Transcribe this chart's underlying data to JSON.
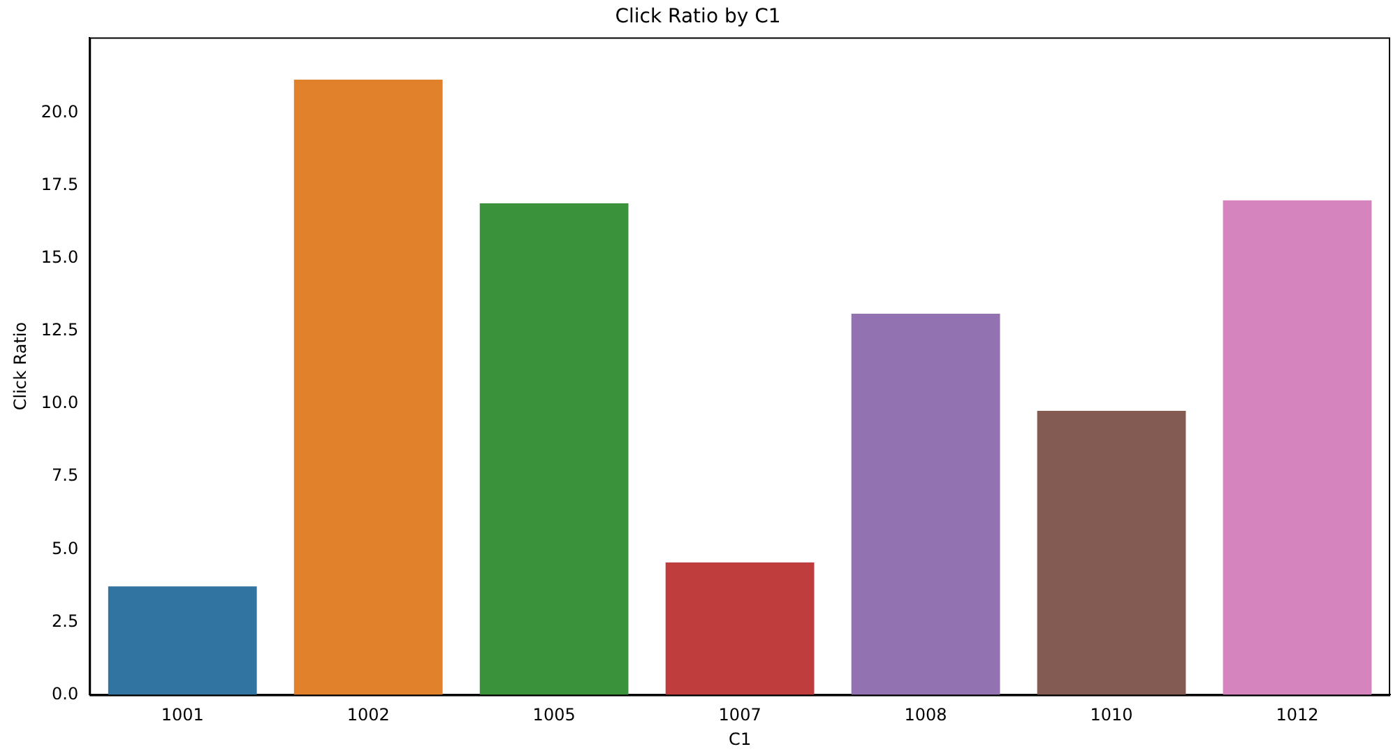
{
  "chart_data": {
    "type": "bar",
    "title": "Click Ratio by C1",
    "xlabel": "C1",
    "ylabel": "Click Ratio",
    "categories": [
      "1001",
      "1002",
      "1005",
      "1007",
      "1008",
      "1010",
      "1012"
    ],
    "values": [
      3.73,
      21.15,
      16.9,
      4.55,
      13.1,
      9.76,
      17.0
    ],
    "colors": [
      "#3274a1",
      "#e1812c",
      "#3a923a",
      "#c03d3e",
      "#9372b2",
      "#845b53",
      "#d684bd"
    ],
    "ylim": [
      0,
      22.6
    ],
    "yticks": [
      {
        "value": 0,
        "label": "0.0"
      },
      {
        "value": 2.5,
        "label": "2.5"
      },
      {
        "value": 5,
        "label": "5.0"
      },
      {
        "value": 7.5,
        "label": "7.5"
      },
      {
        "value": 10,
        "label": "10.0"
      },
      {
        "value": 12.5,
        "label": "12.5"
      },
      {
        "value": 15,
        "label": "15.0"
      },
      {
        "value": 17.5,
        "label": "17.5"
      },
      {
        "value": 20,
        "label": "20.0"
      }
    ],
    "grid": false,
    "legend": false
  }
}
